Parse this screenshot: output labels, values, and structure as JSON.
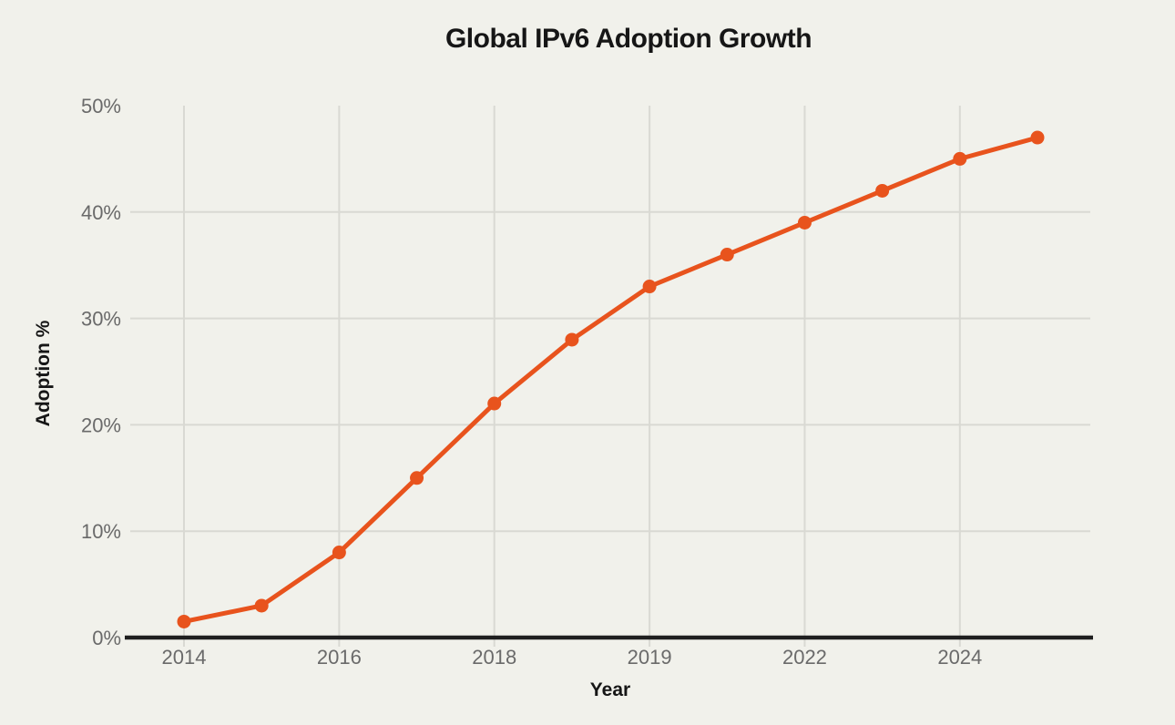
{
  "chart_data": {
    "type": "line",
    "title": "Global IPv6 Adoption Growth",
    "xlabel": "Year",
    "ylabel": "Adoption %",
    "values": [
      1.5,
      3,
      8,
      15,
      22,
      28,
      33,
      36,
      39,
      42,
      45,
      47
    ],
    "x_tick_labels": [
      "2014",
      "2016",
      "2018",
      "2019",
      "2022",
      "2024"
    ],
    "x_tick_point_indices": [
      0,
      2,
      4,
      6,
      8,
      10
    ],
    "y_tick_labels": [
      "0%",
      "10%",
      "20%",
      "30%",
      "40%",
      "50%"
    ],
    "y_tick_values": [
      0,
      10,
      20,
      30,
      40,
      50
    ],
    "y_grid_values": [
      10,
      20,
      30,
      40
    ],
    "ylim": [
      0,
      50
    ],
    "grid": true,
    "legend": "none",
    "marker": "circle"
  },
  "colors": {
    "background": "#F1F1EB",
    "line": "#E8531D",
    "grid": "#D9D9D3",
    "axis_line": "#1F1F1F",
    "tick_text": "#6A6A6A",
    "title_text": "#161616"
  }
}
